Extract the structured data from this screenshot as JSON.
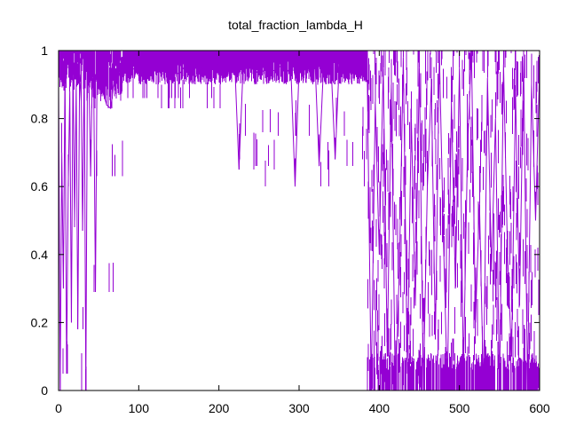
{
  "chart_data": {
    "type": "line",
    "title": "total_fraction_lambda_H",
    "xlabel": "",
    "ylabel": "",
    "xlim": [
      0,
      600
    ],
    "ylim": [
      0,
      1
    ],
    "x_ticks": [
      0,
      100,
      200,
      300,
      400,
      500,
      600
    ],
    "y_ticks": [
      0,
      0.2,
      0.4,
      0.6,
      0.8,
      1
    ],
    "x_tick_labels": [
      "0",
      "100",
      "200",
      "300",
      "400",
      "500",
      "600"
    ],
    "y_tick_labels": [
      "0",
      "0.2",
      "0.4",
      "0.6",
      "0.8",
      "1"
    ],
    "grid": false,
    "legend": "none",
    "series": [
      {
        "color": "#9400d3",
        "style": "impulses",
        "x_range": [
          0,
          600
        ],
        "segments": [
          {
            "x": [
              0,
              35
            ],
            "typical": [
              0.88,
              1.0
            ],
            "drops": [
              0.0,
              0.05,
              0.48,
              0.18,
              0.5
            ]
          },
          {
            "x": [
              35,
              80
            ],
            "typical": [
              0.85,
              0.98
            ],
            "drops": [
              0.63,
              0.29,
              0.83
            ]
          },
          {
            "x": [
              80,
              220
            ],
            "typical": [
              0.9,
              0.98
            ],
            "drops": [
              0.83,
              0.86
            ]
          },
          {
            "x": [
              220,
              385
            ],
            "typical": [
              0.9,
              0.99
            ],
            "drops": [
              0.65,
              0.75,
              0.6,
              0.66,
              0.76,
              0.68
            ]
          },
          {
            "x": [
              385,
              600
            ],
            "typical": [
              0.0,
              1.0
            ],
            "drops": [
              0.0,
              0.13,
              0.25
            ]
          }
        ],
        "samples": {
          "x": [
            0,
            2,
            4,
            6,
            8,
            10,
            12,
            14,
            16,
            18,
            20,
            22,
            24,
            26,
            28,
            30,
            32,
            34,
            36,
            38,
            40,
            42,
            44,
            46,
            48,
            50,
            55,
            60,
            65,
            70,
            75,
            80,
            90,
            100,
            110,
            120,
            130,
            140,
            150,
            160,
            170,
            180,
            190,
            200,
            210,
            220,
            225,
            230,
            240,
            250,
            260,
            270,
            280,
            290,
            295,
            300,
            310,
            320,
            325,
            330,
            340,
            345,
            350,
            360,
            370,
            380,
            385,
            390,
            395,
            400,
            405,
            410,
            415,
            420,
            425,
            430,
            435,
            440,
            445,
            450,
            455,
            460,
            465,
            470,
            475,
            480,
            485,
            490,
            495,
            500,
            505,
            510,
            515,
            520,
            525,
            530,
            535,
            540,
            545,
            550,
            555,
            560,
            565,
            570,
            575,
            580,
            585,
            590,
            595,
            600
          ],
          "y": [
            0.92,
            0.0,
            0.7,
            0.3,
            0.95,
            0.05,
            0.6,
            0.88,
            0.2,
            0.97,
            0.5,
            0.9,
            0.18,
            0.85,
            0.93,
            0.47,
            0.98,
            0.0,
            0.94,
            0.9,
            0.63,
            0.92,
            0.86,
            0.29,
            0.95,
            0.91,
            0.88,
            0.84,
            0.83,
            0.93,
            0.92,
            0.97,
            0.95,
            0.94,
            0.93,
            0.96,
            0.94,
            0.95,
            0.93,
            0.96,
            0.92,
            0.95,
            0.94,
            0.96,
            0.93,
            0.95,
            0.65,
            0.94,
            0.96,
            0.93,
            0.95,
            0.94,
            0.96,
            0.93,
            0.6,
            0.95,
            0.94,
            0.96,
            0.66,
            0.93,
            0.95,
            0.68,
            0.96,
            0.94,
            0.95,
            0.97,
            0.93,
            0.0,
            0.85,
            0.4,
            0.95,
            0.1,
            0.9,
            0.0,
            0.35,
            0.98,
            0.05,
            0.8,
            0.25,
            0.95,
            0.0,
            0.6,
            0.9,
            0.15,
            0.99,
            0.45,
            0.0,
            0.85,
            0.3,
            0.95,
            0.05,
            0.7,
            1.0,
            0.2,
            0.55,
            0.0,
            0.92,
            0.35,
            0.8,
            0.0,
            0.96,
            0.4,
            0.1,
            0.88,
            0.25,
            0.98,
            0.0,
            0.9,
            0.5,
            0.95
          ]
        }
      }
    ]
  }
}
